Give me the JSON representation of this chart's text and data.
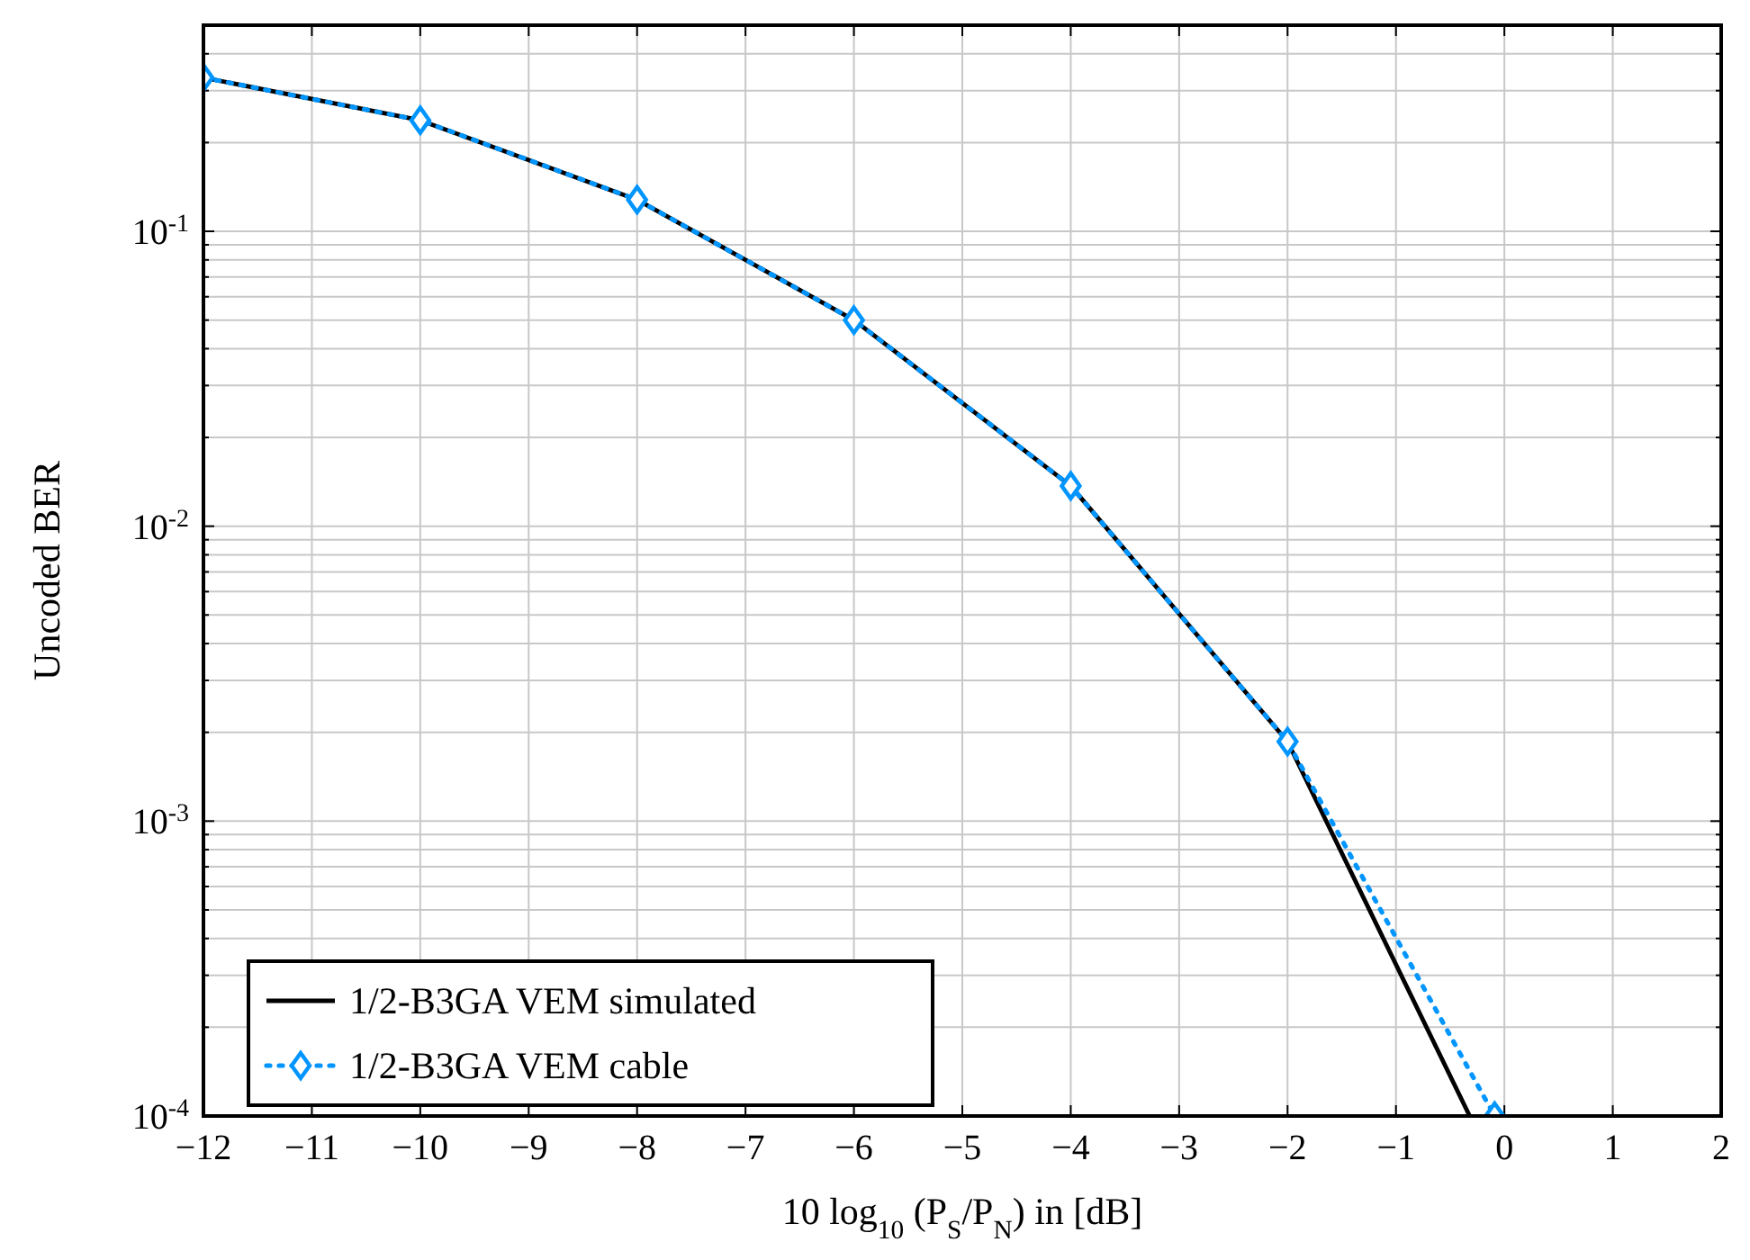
{
  "chart_data": {
    "type": "line",
    "xlabel": "10 log$_{10}$ (P$_{S}$/P$_{N}$) in [dB]",
    "ylabel": "Uncoded BER",
    "log": "y",
    "grid": true,
    "legend": "bottom left",
    "xlim": [
      -12,
      2
    ],
    "xticks": [
      -12,
      -11,
      -10,
      -9,
      -8,
      -7,
      -6,
      -5,
      -4,
      -3,
      -2,
      -1,
      0,
      1,
      2
    ],
    "ylim": [
      0.0001,
      0.5
    ],
    "yticks": [
      {
        "value": 0.0001,
        "label": "10$^{-4}$"
      },
      {
        "value": 0.0002,
        "label": null
      },
      {
        "value": 0.0003,
        "label": null
      },
      {
        "value": 0.0004,
        "label": null
      },
      {
        "value": 0.0005,
        "label": null
      },
      {
        "value": 0.0006,
        "label": null
      },
      {
        "value": 0.0007,
        "label": null
      },
      {
        "value": 0.0008,
        "label": null
      },
      {
        "value": 0.0009,
        "label": null
      },
      {
        "value": 0.001,
        "label": "10$^{-3}$"
      },
      {
        "value": 0.002,
        "label": null
      },
      {
        "value": 0.003,
        "label": null
      },
      {
        "value": 0.004,
        "label": null
      },
      {
        "value": 0.005,
        "label": null
      },
      {
        "value": 0.006,
        "label": null
      },
      {
        "value": 0.007,
        "label": null
      },
      {
        "value": 0.008,
        "label": null
      },
      {
        "value": 0.009,
        "label": null
      },
      {
        "value": 0.01,
        "label": "10$^{-2}$"
      },
      {
        "value": 0.02,
        "label": null
      },
      {
        "value": 0.03,
        "label": null
      },
      {
        "value": 0.04,
        "label": null
      },
      {
        "value": 0.05,
        "label": null
      },
      {
        "value": 0.06,
        "label": null
      },
      {
        "value": 0.07,
        "label": null
      },
      {
        "value": 0.08,
        "label": null
      },
      {
        "value": 0.09,
        "label": null
      },
      {
        "value": 0.1,
        "label": "10$^{-1}$"
      },
      {
        "value": 0.2,
        "label": null
      },
      {
        "value": 0.3,
        "label": null
      },
      {
        "value": 0.4,
        "label": null
      },
      {
        "value": 0.5,
        "label": null
      }
    ],
    "series": [
      {
        "name": "1/2-B3GA VEM simulated",
        "color": "#000000",
        "marker": "none",
        "line_style": "solid",
        "x": [
          -12,
          -10,
          -8,
          -6,
          -4,
          -2,
          -0.32
        ],
        "values": [
          0.332,
          0.238,
          0.128,
          0.05,
          0.0137,
          0.00186,
          0.0001
        ]
      },
      {
        "name": "1/2-B3GA VEM cable",
        "color": "#0095ff",
        "marker": "diamond",
        "line_style": "dotted",
        "x": [
          -12,
          -10,
          -8,
          -6,
          -4,
          -2,
          -0.09
        ],
        "values": [
          0.332,
          0.238,
          0.128,
          0.05,
          0.0137,
          0.00186,
          0.0001
        ]
      }
    ]
  }
}
